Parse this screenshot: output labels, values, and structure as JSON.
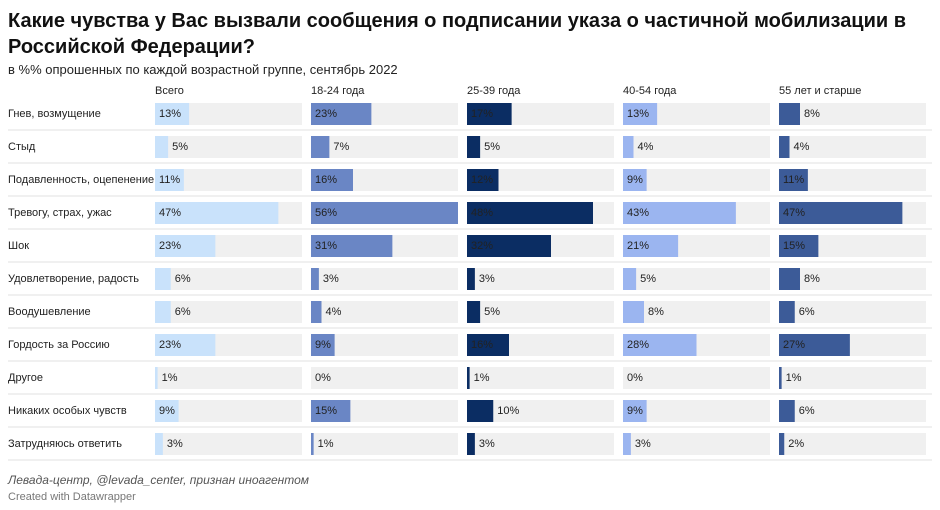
{
  "chart_data": {
    "type": "bar",
    "title": "Какие чувства у Вас вызвали сообщения о подписании указа о частичной мобилизации в Российской Федерации?",
    "subtitle": "в %% опрошенных по каждой возрастной группе, сентябрь 2022",
    "source": "Левада-центр, @levada_center, признан иноагентом",
    "credit": "Created with Datawrapper",
    "xlim": [
      0,
      56
    ],
    "categories": [
      "Гнев, возмущение",
      "Стыд",
      "Подавленность, оцепенение",
      "Тревогу, страх, ужас",
      "Шок",
      "Удовлетворение, радость",
      "Воодушевление",
      "Гордость за Россию",
      "Другое",
      "Никаких особых чувств",
      "Затрудняюсь ответить"
    ],
    "series": [
      {
        "name": "Всего",
        "color": "#c9e2fb",
        "label_color": "#222222",
        "values": [
          13,
          5,
          11,
          47,
          23,
          6,
          6,
          23,
          1,
          9,
          3
        ],
        "value_labels": [
          "13%",
          "5%",
          "11%",
          "47%",
          "23%",
          "6%",
          "6%",
          "23%",
          "1%",
          "9%",
          "3%"
        ]
      },
      {
        "name": "18-24 года",
        "color": "#6a86c5",
        "label_color": "#ffffff",
        "values": [
          23,
          7,
          16,
          56,
          31,
          3,
          4,
          9,
          0,
          15,
          1
        ],
        "value_labels": [
          "23%",
          "7%",
          "16%",
          "56%",
          "31%",
          "3%",
          "4%",
          "9%",
          "0%",
          "15%",
          "1%"
        ]
      },
      {
        "name": "25-39 года",
        "color": "#0b2d63",
        "label_color": "#ffffff",
        "values": [
          17,
          5,
          12,
          48,
          32,
          3,
          5,
          16,
          1,
          10,
          3
        ],
        "value_labels": [
          "17%",
          "5%",
          "12%",
          "48%",
          "32%",
          "3%",
          "5%",
          "16%",
          "1%",
          "10%",
          "3%"
        ]
      },
      {
        "name": "40-54 года",
        "color": "#9bb5f0",
        "label_color": "#222222",
        "values": [
          13,
          4,
          9,
          43,
          21,
          5,
          8,
          28,
          0,
          9,
          3
        ],
        "value_labels": [
          "13%",
          "4%",
          "9%",
          "43%",
          "21%",
          "5%",
          "8%",
          "28%",
          "0%",
          "9%",
          "3%"
        ]
      },
      {
        "name": "55 лет и старше",
        "color": "#3c5b98",
        "label_color": "#ffffff",
        "values": [
          8,
          4,
          11,
          47,
          15,
          8,
          6,
          27,
          1,
          6,
          2
        ],
        "value_labels": [
          "8%",
          "4%",
          "11%",
          "47%",
          "15%",
          "8%",
          "6%",
          "27%",
          "1%",
          "6%",
          "2%"
        ]
      }
    ]
  }
}
